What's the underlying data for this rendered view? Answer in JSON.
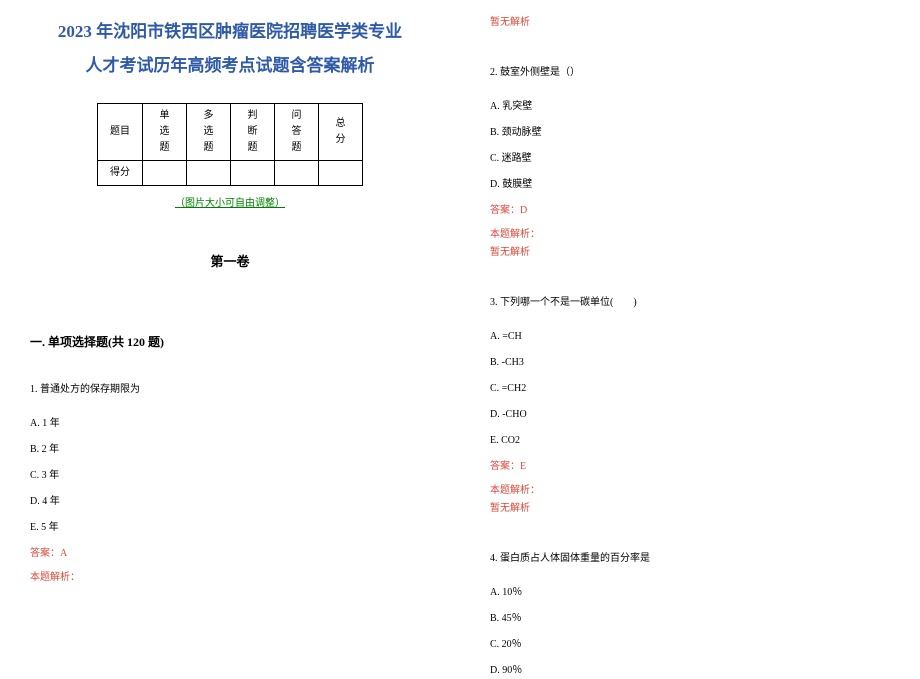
{
  "colors": {
    "title": "#2e5aa8",
    "green": "#008000",
    "red": "#d94a3a",
    "black": "#000000"
  },
  "fonts": {
    "title_size": "17px",
    "body_size": "10px"
  },
  "title_line1": "2023 年沈阳市铁西区肿瘤医院招聘医学类专业",
  "title_line2": "人才考试历年高频考点试题含答案解析",
  "table": {
    "h0": "题目",
    "h1": "单选题",
    "h2": "多选题",
    "h3": "判断题",
    "h4": "问答题",
    "h5": "总分",
    "r0": "得分"
  },
  "img_note": "（图片大小可自由调整）",
  "volume": "第一卷",
  "section": "一. 单项选择题(共 120 题)",
  "q1": {
    "stem": "1. 普通处方的保存期限为",
    "a": "A. 1 年",
    "b": "B. 2 年",
    "c": "C. 3 年",
    "d": "D. 4 年",
    "e": "E. 5 年",
    "ans": "答案：A",
    "ah": "本题解析：",
    "ab": "暂无解析"
  },
  "q2": {
    "stem": "2. 鼓室外侧壁是（）",
    "a": "A. 乳突壁",
    "b": "B. 颈动脉壁",
    "c": "C. 迷路壁",
    "d": "D. 鼓膜壁",
    "ans": "答案：D",
    "ah": "本题解析：",
    "ab": "暂无解析"
  },
  "q3": {
    "stem": "3. 下列哪一个不是一碳单位(　　)",
    "a": "A. =CH",
    "b": "B. -CH3",
    "c": "C. =CH2",
    "d": "D. -CHO",
    "e": "E. CO2",
    "ans": "答案：E",
    "ah": "本题解析：",
    "ab": "暂无解析"
  },
  "q4": {
    "stem": "4. 蛋白质占人体固体重量的百分率是",
    "a": "A. 10％",
    "b": "B. 45％",
    "c": "C. 20％",
    "d": "D. 90％"
  },
  "top_ab": "暂无解析"
}
